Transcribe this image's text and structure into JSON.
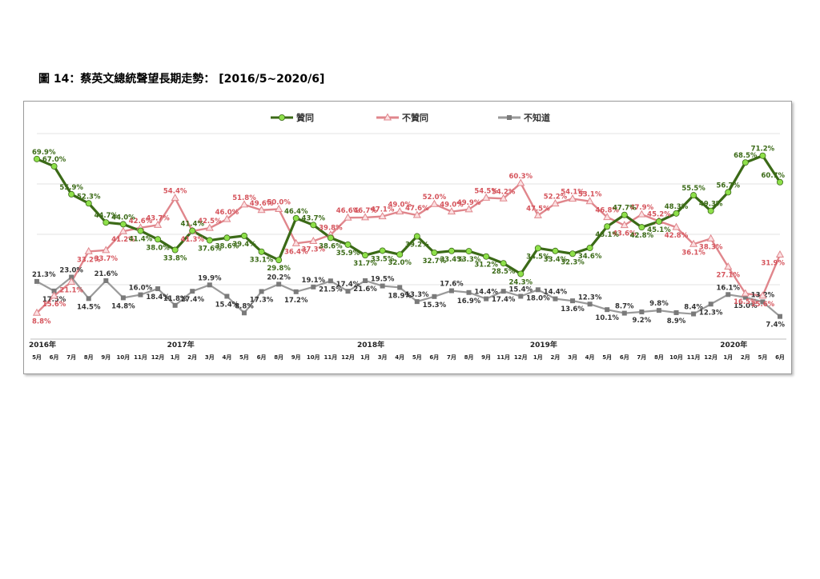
{
  "figure": {
    "title": "圖 14：蔡英文總統聲望長期走勢：  [2016/5~2020/6]"
  },
  "chart_data": {
    "type": "line",
    "title": "",
    "xlabel": "",
    "ylabel": "",
    "ylim": [
      0,
      80
    ],
    "grid": true,
    "legend_position": "top",
    "categories": [
      "5月",
      "6月",
      "7月",
      "8月",
      "9月",
      "10月",
      "11月",
      "12月",
      "1月",
      "2月",
      "3月",
      "4月",
      "5月",
      "6月",
      "8月",
      "9月",
      "10月",
      "11月",
      "12月",
      "1月",
      "3月",
      "4月",
      "5月",
      "6月",
      "7月",
      "8月",
      "9月",
      "11月",
      "12月",
      "1月",
      "2月",
      "3月",
      "4月",
      "5月",
      "6月",
      "7月",
      "8月",
      "10月",
      "11月",
      "12月",
      "1月",
      "2月",
      "5月",
      "6月"
    ],
    "years": [
      {
        "label": "2016年",
        "index": 0
      },
      {
        "label": "2017年",
        "index": 8
      },
      {
        "label": "2018年",
        "index": 19
      },
      {
        "label": "2019年",
        "index": 29
      },
      {
        "label": "2020年",
        "index": 40
      }
    ],
    "series": [
      {
        "name": "贊同",
        "color": "#3b6a17",
        "marker": "circle",
        "marker_color": "#8ee04a",
        "label_color": "#3b6a17",
        "values": [
          69.9,
          67.0,
          55.9,
          52.3,
          44.7,
          44.0,
          41.4,
          38.0,
          33.8,
          41.4,
          37.6,
          38.6,
          39.4,
          33.1,
          29.8,
          46.4,
          43.7,
          38.6,
          35.9,
          31.7,
          33.5,
          32.0,
          39.2,
          32.7,
          33.4,
          33.3,
          31.2,
          28.5,
          24.3,
          34.5,
          33.4,
          32.3,
          34.6,
          43.1,
          47.7,
          42.8,
          45.1,
          48.3,
          55.5,
          49.3,
          56.7,
          68.5,
          71.2,
          60.7
        ]
      },
      {
        "name": "不贊同",
        "color": "#e0868c",
        "marker": "triangle",
        "marker_color": "#fbe0e2",
        "label_color": "#d5545c",
        "values": [
          8.8,
          15.6,
          21.1,
          33.2,
          33.7,
          41.2,
          42.6,
          43.7,
          54.4,
          41.3,
          42.5,
          46.0,
          51.8,
          49.6,
          50.0,
          36.4,
          37.3,
          39.8,
          46.6,
          46.7,
          47.1,
          49.0,
          47.6,
          52.0,
          49.0,
          49.9,
          54.5,
          54.2,
          60.3,
          47.5,
          52.2,
          54.1,
          53.1,
          46.8,
          43.6,
          47.9,
          45.2,
          42.8,
          36.1,
          38.3,
          27.1,
          16.5,
          15.6,
          31.9
        ]
      },
      {
        "name": "不知道",
        "color": "#9a9a9a",
        "marker": "square",
        "marker_color": "#7a7a7a",
        "label_color": "#333333",
        "values": [
          21.3,
          17.5,
          23.0,
          14.5,
          21.6,
          14.8,
          16.0,
          18.4,
          11.8,
          17.4,
          19.9,
          15.4,
          8.8,
          17.3,
          20.2,
          17.2,
          19.1,
          21.5,
          17.4,
          21.6,
          19.5,
          18.9,
          13.3,
          15.3,
          17.6,
          16.9,
          14.4,
          17.4,
          15.4,
          18.0,
          14.4,
          13.6,
          12.3,
          10.1,
          8.7,
          9.2,
          9.8,
          8.9,
          8.4,
          12.3,
          16.1,
          15.0,
          13.2,
          7.4
        ]
      }
    ]
  }
}
